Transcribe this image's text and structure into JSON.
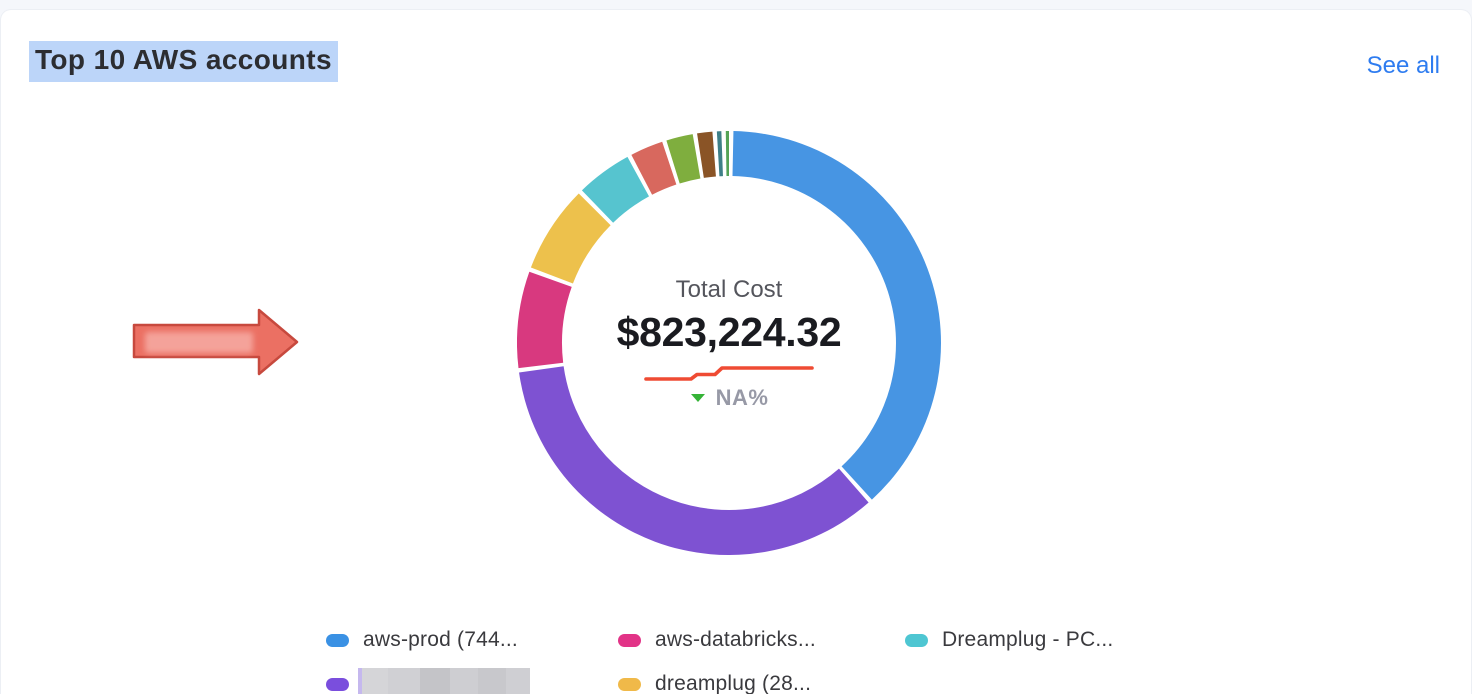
{
  "header": {
    "title": "Top 10 AWS accounts",
    "see_all_label": "See all",
    "title_highlight_color": "#bcd5f9",
    "link_color": "#2e7cf0"
  },
  "chart_data": {
    "type": "pie",
    "subtype": "donut",
    "title": "Top 10 AWS accounts",
    "center": {
      "label": "Total Cost",
      "value": "$823,224.32",
      "change_label": "NA%",
      "change_direction": "down",
      "change_arrow_color": "#35b337",
      "change_text_color": "#9799a6",
      "trend_line_color": "#ef4b33"
    },
    "segments": [
      {
        "label": "aws-prod (744...",
        "color": "#4795e3",
        "share_pct": 39.2
      },
      {
        "label": "",
        "redacted": true,
        "color": "#7e52d2",
        "share_pct": 35.4
      },
      {
        "label": "aws-databricks...",
        "color": "#d8397f",
        "share_pct": 7.6
      },
      {
        "label": "dreamplug (28...",
        "color": "#edc14c",
        "share_pct": 6.9
      },
      {
        "label": "Dreamplug - PC...",
        "color": "#56c4cf",
        "share_pct": 4.4
      },
      {
        "label": null,
        "color": "#d8685e",
        "share_pct": 2.6
      },
      {
        "label": null,
        "color": "#7fae3e",
        "share_pct": 2.1
      },
      {
        "label": null,
        "color": "#8a5426",
        "share_pct": 1.2
      },
      {
        "label": null,
        "color": "#3e7f87",
        "share_pct": 0.35
      },
      {
        "label": null,
        "color": "#55a356",
        "share_pct": 0.25
      }
    ],
    "legend": {
      "position": "bottom",
      "items": [
        {
          "label": "aws-prod (744...",
          "color": "#3a91e4",
          "redacted": false,
          "row": 0,
          "col": 0
        },
        {
          "label": "aws-databricks...",
          "color": "#e23387",
          "redacted": false,
          "row": 0,
          "col": 1
        },
        {
          "label": "Dreamplug - PC...",
          "color": "#4ec6d2",
          "redacted": false,
          "row": 0,
          "col": 2
        },
        {
          "label": "",
          "color": "#7a4edd",
          "redacted": true,
          "row": 1,
          "col": 0
        },
        {
          "label": "dreamplug (28...",
          "color": "#f0b949",
          "redacted": false,
          "row": 1,
          "col": 1
        }
      ]
    }
  },
  "annotation": {
    "type": "arrow-right",
    "fill_color": "#eb7063",
    "border_color": "#c7493e",
    "redacted_text": true
  }
}
